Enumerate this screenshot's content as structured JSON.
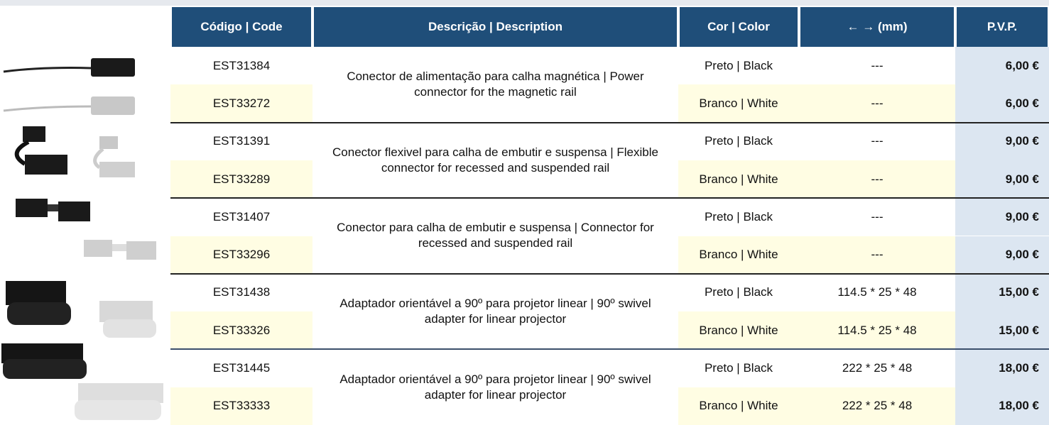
{
  "header": [
    "Código | Code",
    "Descrição | Description",
    "Cor | Color",
    "← → (mm)",
    "P.V.P."
  ],
  "groups": [
    {
      "description": "Conector de alimentação para calha magnética | Power connector for the magnetic rail",
      "items": [
        {
          "code": "EST31384",
          "color": "Preto | Black",
          "dimensions": "---",
          "price": "6,00 €"
        },
        {
          "code": "EST33272",
          "color": "Branco | White",
          "dimensions": "---",
          "price": "6,00 €"
        }
      ]
    },
    {
      "description": "Conector flexivel para calha de embutir e suspensa | Flexible connector for recessed and suspended rail",
      "items": [
        {
          "code": "EST31391",
          "color": "Preto | Black",
          "dimensions": "---",
          "price": "9,00 €"
        },
        {
          "code": "EST33289",
          "color": "Branco | White",
          "dimensions": "---",
          "price": "9,00 €"
        }
      ]
    },
    {
      "description": "Conector para calha de embutir e suspensa | Connector for recessed and suspended rail",
      "items": [
        {
          "code": "EST31407",
          "color": "Preto | Black",
          "dimensions": "---",
          "price": "9,00 €"
        },
        {
          "code": "EST33296",
          "color": "Branco | White",
          "dimensions": "---",
          "price": "9,00 €"
        }
      ]
    },
    {
      "description": "Adaptador orientável a 90º para projetor linear | 90º swivel adapter for linear projector",
      "items": [
        {
          "code": "EST31438",
          "color": "Preto | Black",
          "dimensions": "114.5 * 25 * 48",
          "price": "15,00 €"
        },
        {
          "code": "EST33326",
          "color": "Branco | White",
          "dimensions": "114.5 * 25 * 48",
          "price": "15,00 €"
        }
      ]
    },
    {
      "description": "Adaptador orientável a 90º para projetor linear | 90º swivel adapter for linear projector",
      "items": [
        {
          "code": "EST31445",
          "color": "Preto | Black",
          "dimensions": "222 * 25 * 48",
          "price": "18,00 €"
        },
        {
          "code": "EST33333",
          "color": "Branco | White",
          "dimensions": "222 * 25 * 48",
          "price": "18,00 €"
        }
      ]
    }
  ]
}
